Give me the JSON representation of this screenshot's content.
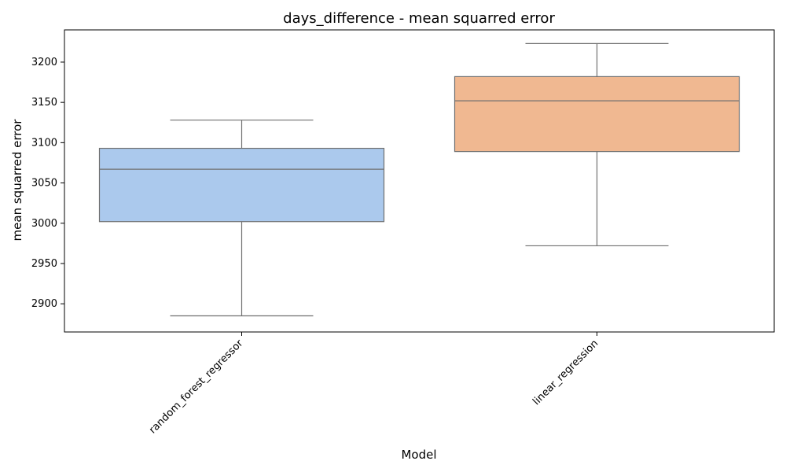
{
  "chart_data": {
    "type": "box",
    "title": "days_difference - mean squarred error",
    "xlabel": "Model",
    "ylabel": "mean squarred error",
    "ylim": [
      2865,
      3240
    ],
    "yticks": [
      2900,
      2950,
      3000,
      3050,
      3100,
      3150,
      3200
    ],
    "grid": false,
    "categories": [
      "random_forest_regressor",
      "linear_regression"
    ],
    "series": [
      {
        "category": "random_forest_regressor",
        "whisker_low": 2885,
        "q1": 3002,
        "median": 3067,
        "q3": 3093,
        "whisker_high": 3128,
        "color": "#abc9ed"
      },
      {
        "category": "linear_regression",
        "whisker_low": 2972,
        "q1": 3089,
        "median": 3152,
        "q3": 3182,
        "whisker_high": 3223,
        "color": "#f0b891"
      }
    ],
    "colors": {
      "edge": "#707070",
      "axis": "#000000",
      "text": "#000000"
    }
  }
}
